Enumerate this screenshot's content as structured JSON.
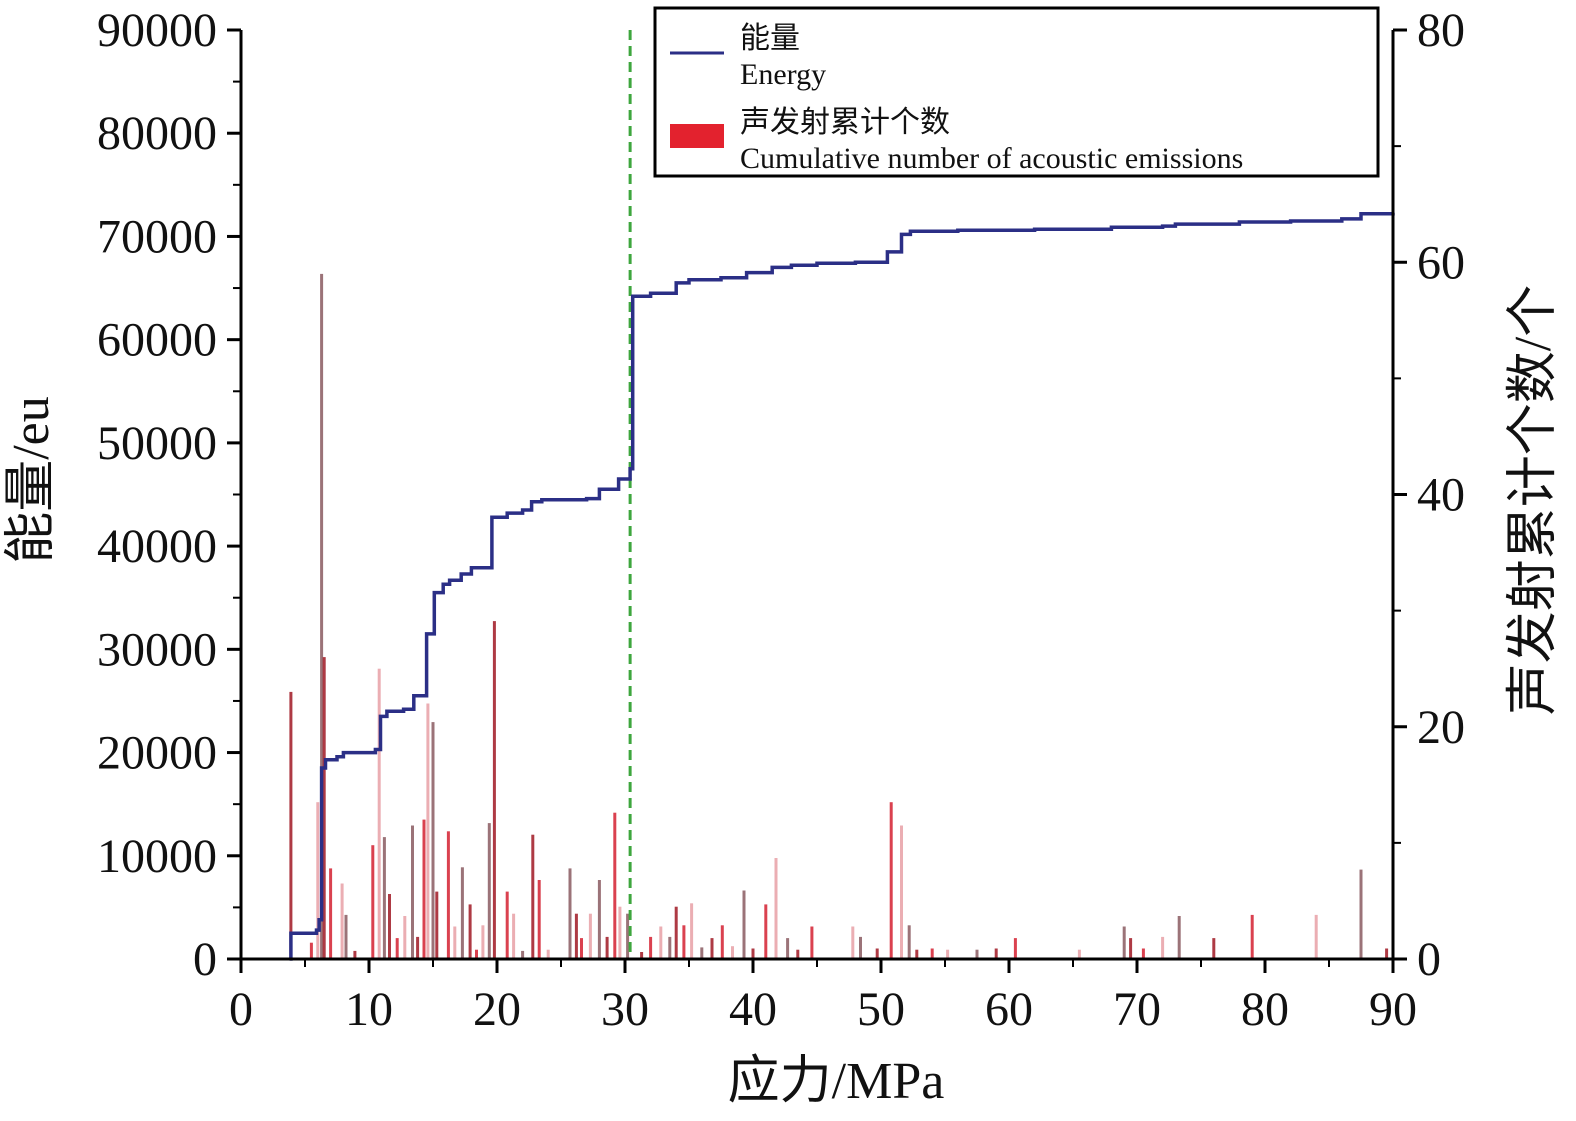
{
  "chart_data": {
    "type": "line",
    "xlabel": "应力/MPa",
    "ylabel_left": "能量/eu",
    "ylabel_right": "声发射累计个数/个",
    "xlim": [
      0,
      90
    ],
    "ylim_left": [
      0,
      90000
    ],
    "ylim_right": [
      0,
      80
    ],
    "x_ticks": [
      "0",
      "10",
      "20",
      "30",
      "40",
      "50",
      "60",
      "70",
      "80",
      "90"
    ],
    "y_left_ticks": [
      "0",
      "10000",
      "20000",
      "30000",
      "40000",
      "50000",
      "60000",
      "70000",
      "80000",
      "90000"
    ],
    "y_right_ticks": [
      "0",
      "20",
      "40",
      "60",
      "80"
    ],
    "reference_line_x": 30.4,
    "legend": {
      "position": "top-right",
      "items": [
        {
          "label_cn": "能量",
          "label_en": "Energy"
        },
        {
          "label_cn": "声发射累计个数",
          "label_en": "Cumulative number of acoustic emissions"
        }
      ]
    },
    "series": [
      {
        "name": "能量",
        "axis": "left",
        "color": "#2b2f86",
        "step": true,
        "x": [
          3.8,
          3.9,
          5.9,
          6.1,
          6.3,
          6.6,
          7.5,
          8.0,
          10.5,
          10.9,
          11.4,
          12.7,
          13.5,
          14.5,
          15.1,
          15.8,
          16.3,
          17.2,
          18.0,
          19.6,
          20.8,
          22.0,
          22.7,
          23.5,
          27.0,
          28.0,
          29.5,
          30.4,
          30.6,
          32.0,
          34.0,
          35.0,
          37.5,
          39.5,
          41.5,
          43.0,
          45.0,
          48.0,
          50.5,
          51.6,
          52.3,
          56.0,
          62.0,
          68.0,
          72.0,
          73.0,
          78.0,
          82.0,
          86.0,
          87.5,
          90.0
        ],
        "values": [
          0,
          2500,
          2800,
          3800,
          18500,
          19300,
          19600,
          20000,
          20300,
          23500,
          24000,
          24200,
          25500,
          31500,
          35500,
          36300,
          36700,
          37300,
          37900,
          42800,
          43200,
          43500,
          44300,
          44500,
          44600,
          45500,
          46500,
          47500,
          64200,
          64500,
          65500,
          65800,
          66000,
          66500,
          67000,
          67200,
          67400,
          67500,
          68500,
          70200,
          70500,
          70600,
          70700,
          70900,
          71000,
          71200,
          71400,
          71500,
          71700,
          72200,
          72300
        ]
      },
      {
        "name": "声发射累计个数",
        "axis": "right",
        "type": "bar",
        "color": "#d42030",
        "x": [
          3.9,
          5.5,
          6.0,
          6.3,
          6.5,
          7.0,
          7.9,
          8.2,
          8.9,
          10.3,
          10.8,
          11.2,
          11.6,
          12.2,
          12.8,
          13.4,
          13.8,
          14.3,
          14.6,
          15.0,
          15.3,
          16.2,
          16.7,
          17.3,
          17.9,
          18.4,
          18.9,
          19.4,
          19.8,
          20.8,
          21.3,
          22.0,
          22.8,
          23.3,
          24.0,
          25.7,
          26.2,
          26.6,
          27.3,
          28.0,
          28.6,
          29.2,
          29.6,
          30.2,
          31.3,
          32.0,
          32.8,
          33.5,
          34.0,
          34.6,
          35.2,
          36.0,
          36.8,
          37.6,
          38.4,
          39.3,
          40.0,
          41.0,
          41.8,
          42.7,
          43.5,
          44.6,
          47.8,
          48.4,
          49.7,
          50.8,
          51.6,
          52.2,
          52.8,
          54.0,
          55.2,
          57.5,
          59.0,
          60.5,
          65.5,
          69.0,
          69.5,
          70.5,
          72.0,
          73.3,
          76.0,
          79.0,
          84.0,
          87.5,
          89.5
        ],
        "values": [
          23,
          1.4,
          13.5,
          59,
          26,
          7.8,
          6.5,
          3.8,
          0.7,
          9.8,
          25,
          10.5,
          5.6,
          1.8,
          3.7,
          11.5,
          1.9,
          12,
          22,
          20.4,
          5.8,
          11,
          2.8,
          7.9,
          4.7,
          0.8,
          2.9,
          11.7,
          29.1,
          5.8,
          3.9,
          0.7,
          10.7,
          6.8,
          0.8,
          7.8,
          3.9,
          1.8,
          3.9,
          6.8,
          1.9,
          12.6,
          4.5,
          3.9,
          0.6,
          1.9,
          2.8,
          1.9,
          4.5,
          2.9,
          4.8,
          1.0,
          1.8,
          2.9,
          1.1,
          5.9,
          0.9,
          4.7,
          8.7,
          1.8,
          0.8,
          2.8,
          2.8,
          1.9,
          0.9,
          13.5,
          11.5,
          2.9,
          0.8,
          0.9,
          0.8,
          0.8,
          0.9,
          1.8,
          0.8,
          2.8,
          1.8,
          0.9,
          1.9,
          3.7,
          1.8,
          3.8,
          3.8,
          7.7,
          0.9
        ]
      }
    ]
  }
}
